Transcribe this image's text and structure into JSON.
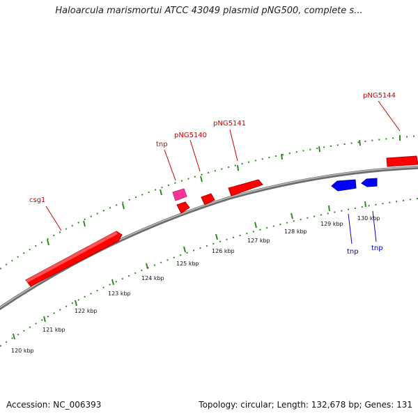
{
  "title": "Haloarcula marismortui ATCC 43049 plasmid pNG500, complete s...",
  "footer": {
    "accession": "Accession: NC_006393",
    "summary": "Topology: circular; Length: 132,678 bp; Genes: 131"
  },
  "colors": {
    "forward_cds": "#ff0000",
    "reverse_cds": "#0000ff",
    "other_feature": "#ff3399",
    "tick_marks": "#2e8b1f",
    "backbone": "#808080",
    "forward_label": "#cc0000",
    "reverse_label": "#0000cc"
  },
  "genes": [
    {
      "label": "csg1",
      "strand": "forward"
    },
    {
      "label": "tnp",
      "strand": "forward"
    },
    {
      "label": "pNG5140",
      "strand": "forward"
    },
    {
      "label": "pNG5141",
      "strand": "forward"
    },
    {
      "label": "pNG5144",
      "strand": "forward"
    },
    {
      "label": "tnp",
      "strand": "reverse"
    },
    {
      "label": "tnp",
      "strand": "reverse"
    }
  ],
  "ticks": [
    {
      "label": "120 kbp"
    },
    {
      "label": "121 kbp"
    },
    {
      "label": "122 kbp"
    },
    {
      "label": "123 kbp"
    },
    {
      "label": "124 kbp"
    },
    {
      "label": "125 kbp"
    },
    {
      "label": "126 kbp"
    },
    {
      "label": "127 kbp"
    },
    {
      "label": "128 kbp"
    },
    {
      "label": "129 kbp"
    },
    {
      "label": "130 kbp"
    }
  ]
}
